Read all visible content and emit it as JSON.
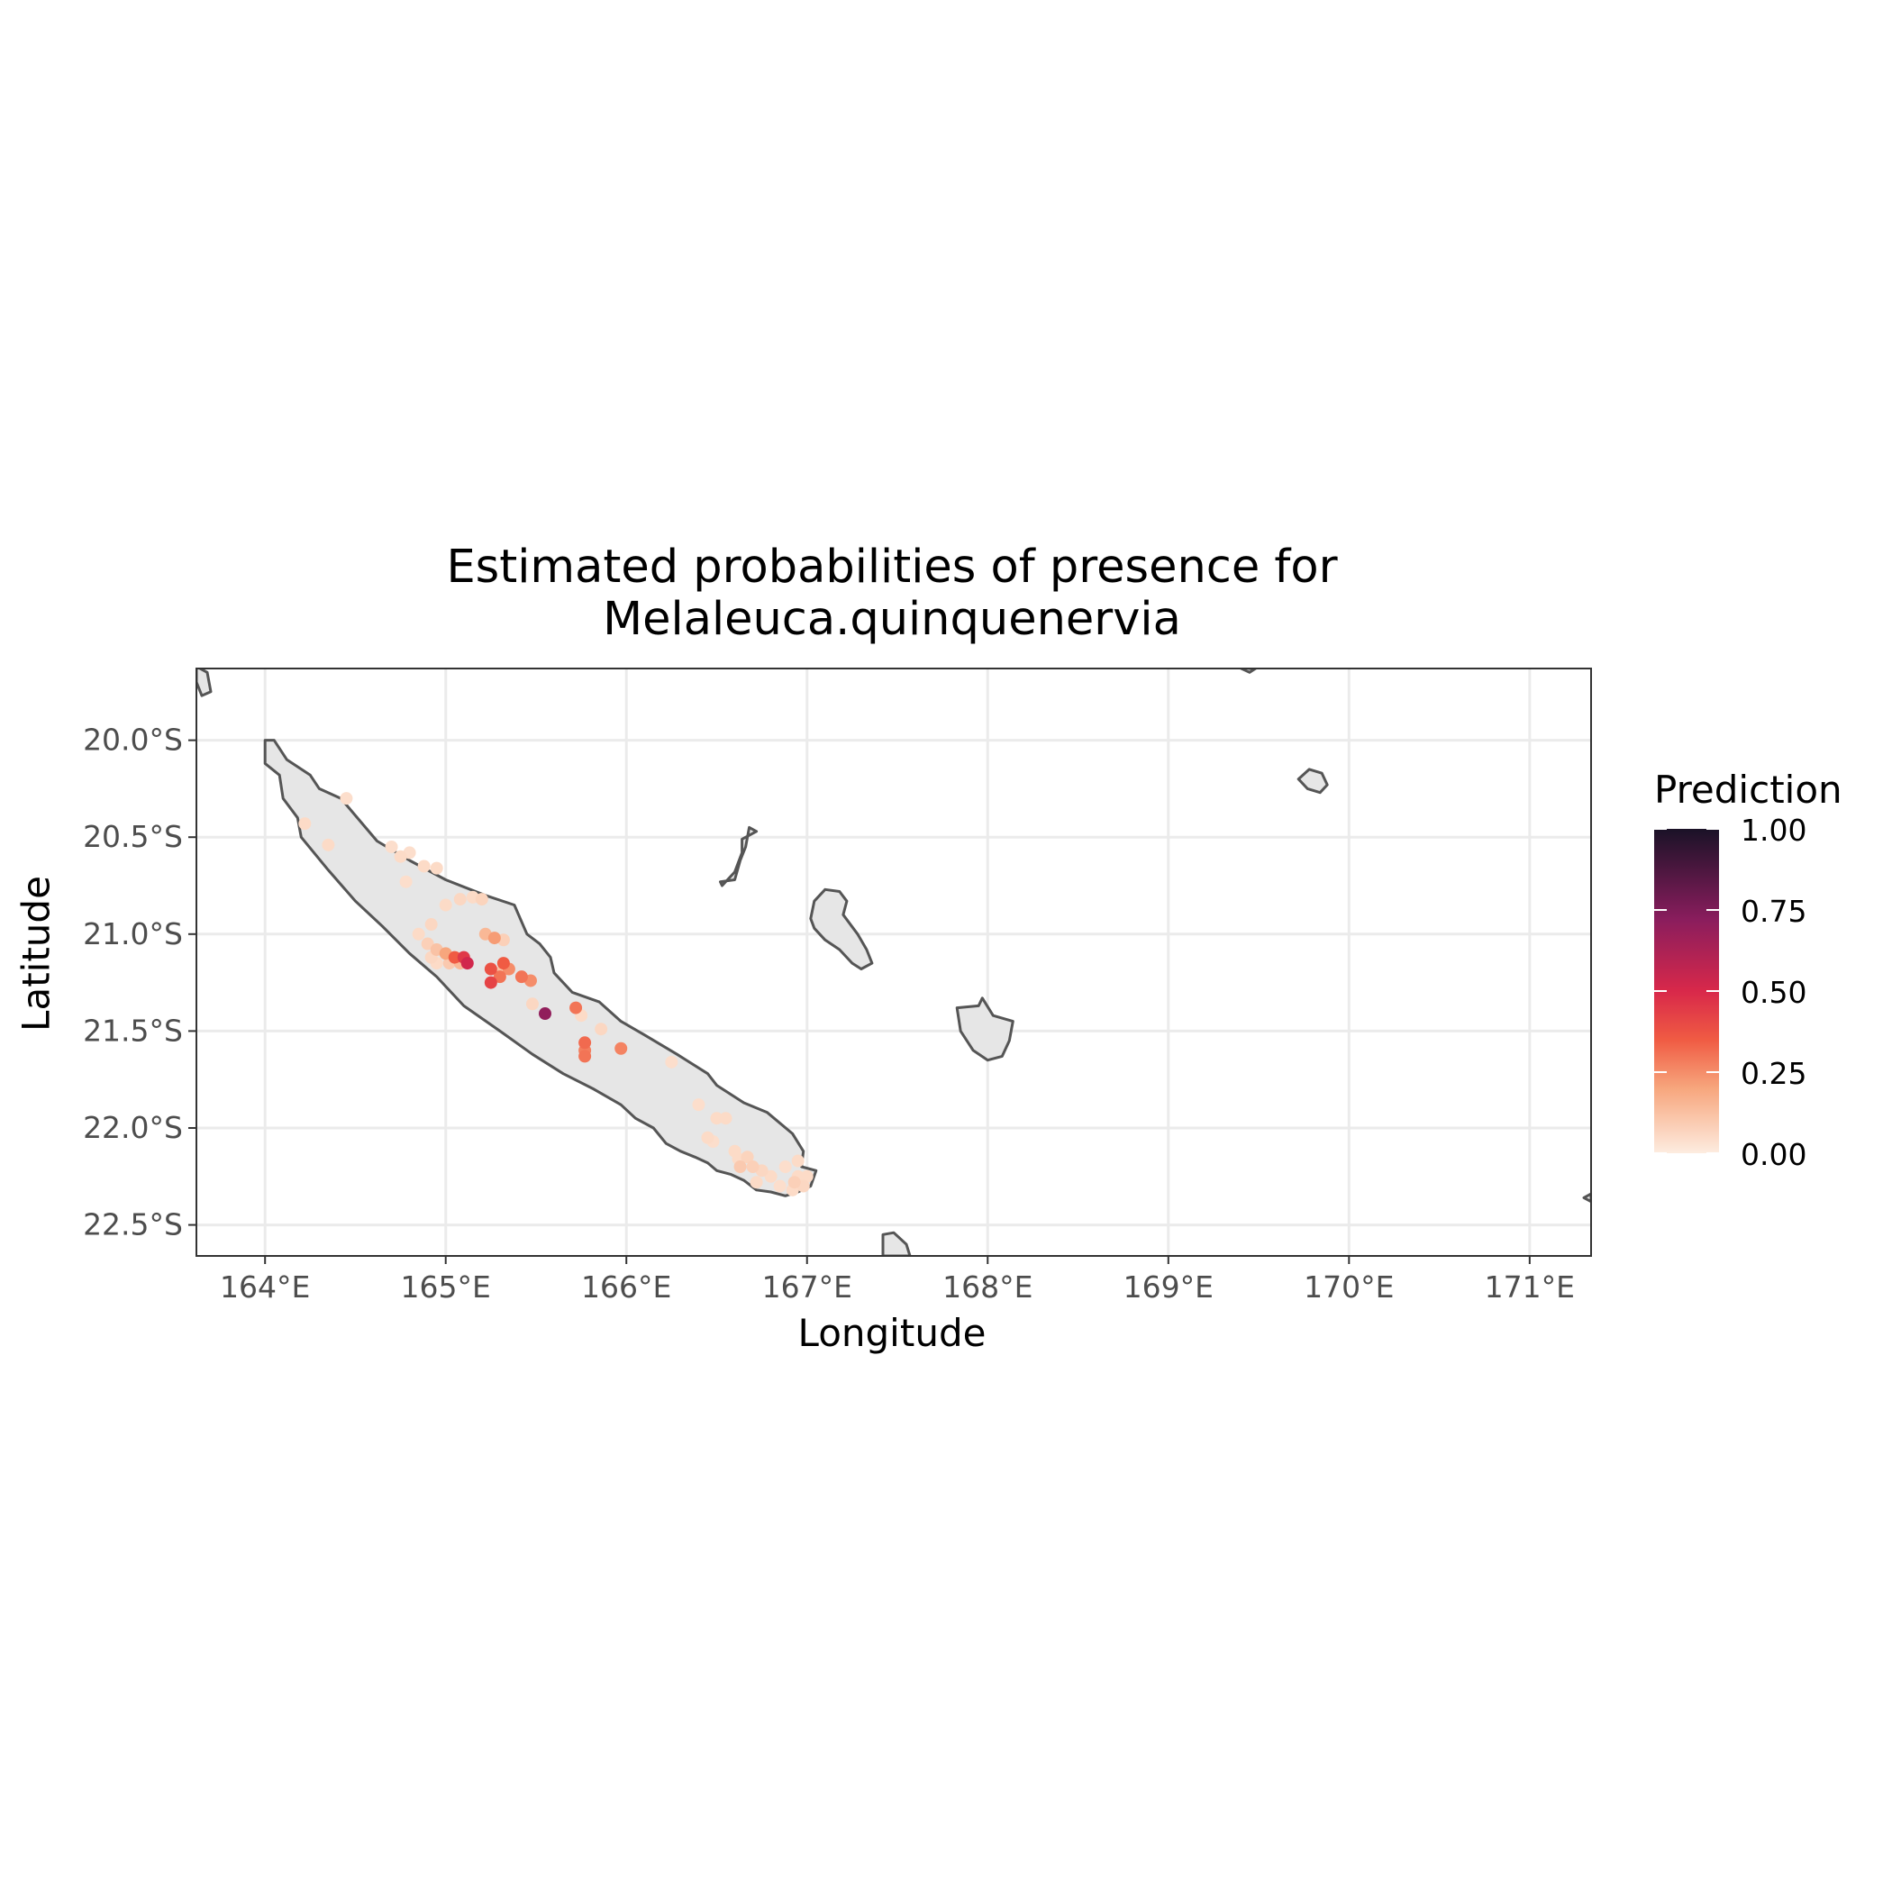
{
  "title": {
    "line1": "Estimated probabilities of presence for",
    "line2": "Melaleuca.quinquenervia"
  },
  "chart_data": {
    "type": "scatter",
    "subtype": "map",
    "xlabel": "Longitude",
    "ylabel": "Latitude",
    "xlim": [
      163.62,
      171.34
    ],
    "ylim": [
      -22.66,
      -19.63
    ],
    "x_ticks": [
      164,
      165,
      166,
      167,
      168,
      169,
      170,
      171
    ],
    "x_tick_labels": [
      "164°E",
      "165°E",
      "166°E",
      "167°E",
      "168°E",
      "169°E",
      "170°E",
      "171°E"
    ],
    "y_ticks": [
      -20.0,
      -20.5,
      -21.0,
      -21.5,
      -22.0,
      -22.5
    ],
    "y_tick_labels": [
      "20.0°S",
      "20.5°S",
      "21.0°S",
      "21.5°S",
      "22.0°S",
      "22.5°S"
    ],
    "grid": true,
    "legend_position": "right",
    "colors": {
      "land_fill": "#e6e6e6",
      "coast": "#555555",
      "grid": "#ebebeb",
      "panel_border": "#333333",
      "scale_low": "#fdece0",
      "scale_mid_low": "#f7a67d",
      "scale_mid": "#f05b43",
      "scale_mid_high": "#d8284a",
      "scale_high_mid": "#8a1d5d",
      "scale_high": "#1a1227"
    },
    "legend": {
      "title": "Prediction",
      "min": 0,
      "max": 1,
      "breaks": [
        1.0,
        0.75,
        0.5,
        0.25,
        0.0
      ],
      "break_labels": [
        "1.00",
        "0.75",
        "0.50",
        "0.25",
        "0.00"
      ]
    },
    "land": [
      {
        "name": "Grande Terre",
        "coords": [
          [
            164.05,
            -20.0
          ],
          [
            164.12,
            -20.1
          ],
          [
            164.25,
            -20.18
          ],
          [
            164.3,
            -20.25
          ],
          [
            164.42,
            -20.3
          ],
          [
            164.62,
            -20.52
          ],
          [
            164.8,
            -20.62
          ],
          [
            165.0,
            -20.72
          ],
          [
            165.22,
            -20.8
          ],
          [
            165.38,
            -20.85
          ],
          [
            165.45,
            -21.0
          ],
          [
            165.52,
            -21.05
          ],
          [
            165.58,
            -21.12
          ],
          [
            165.6,
            -21.2
          ],
          [
            165.7,
            -21.3
          ],
          [
            165.85,
            -21.35
          ],
          [
            165.97,
            -21.45
          ],
          [
            166.1,
            -21.52
          ],
          [
            166.28,
            -21.62
          ],
          [
            166.45,
            -21.72
          ],
          [
            166.5,
            -21.78
          ],
          [
            166.65,
            -21.87
          ],
          [
            166.78,
            -21.92
          ],
          [
            166.92,
            -22.03
          ],
          [
            166.98,
            -22.12
          ],
          [
            166.97,
            -22.2
          ],
          [
            167.05,
            -22.22
          ],
          [
            167.02,
            -22.3
          ],
          [
            166.95,
            -22.33
          ],
          [
            166.88,
            -22.35
          ],
          [
            166.8,
            -22.33
          ],
          [
            166.72,
            -22.32
          ],
          [
            166.65,
            -22.27
          ],
          [
            166.58,
            -22.24
          ],
          [
            166.5,
            -22.22
          ],
          [
            166.45,
            -22.18
          ],
          [
            166.38,
            -22.15
          ],
          [
            166.3,
            -22.12
          ],
          [
            166.22,
            -22.08
          ],
          [
            166.15,
            -22.0
          ],
          [
            166.05,
            -21.95
          ],
          [
            165.97,
            -21.88
          ],
          [
            165.82,
            -21.8
          ],
          [
            165.65,
            -21.72
          ],
          [
            165.48,
            -21.62
          ],
          [
            165.3,
            -21.5
          ],
          [
            165.1,
            -21.37
          ],
          [
            164.95,
            -21.22
          ],
          [
            164.8,
            -21.1
          ],
          [
            164.65,
            -20.96
          ],
          [
            164.5,
            -20.83
          ],
          [
            164.35,
            -20.67
          ],
          [
            164.2,
            -20.5
          ],
          [
            164.18,
            -20.4
          ],
          [
            164.1,
            -20.3
          ],
          [
            164.08,
            -20.18
          ],
          [
            164.0,
            -20.12
          ],
          [
            164.0,
            -20.0
          ]
        ]
      },
      {
        "name": "Ouvea",
        "coords": [
          [
            166.52,
            -20.73
          ],
          [
            166.6,
            -20.72
          ],
          [
            166.63,
            -20.62
          ],
          [
            166.66,
            -20.55
          ],
          [
            166.68,
            -20.45
          ],
          [
            166.72,
            -20.47
          ],
          [
            166.64,
            -20.51
          ],
          [
            166.64,
            -20.58
          ],
          [
            166.6,
            -20.68
          ],
          [
            166.53,
            -20.75
          ]
        ]
      },
      {
        "name": "Lifou",
        "coords": [
          [
            167.02,
            -20.92
          ],
          [
            167.04,
            -20.83
          ],
          [
            167.1,
            -20.77
          ],
          [
            167.18,
            -20.78
          ],
          [
            167.22,
            -20.83
          ],
          [
            167.2,
            -20.9
          ],
          [
            167.28,
            -21.0
          ],
          [
            167.33,
            -21.08
          ],
          [
            167.36,
            -21.15
          ],
          [
            167.3,
            -21.18
          ],
          [
            167.25,
            -21.15
          ],
          [
            167.18,
            -21.08
          ],
          [
            167.1,
            -21.03
          ],
          [
            167.04,
            -20.97
          ]
        ]
      },
      {
        "name": "Mare",
        "coords": [
          [
            167.83,
            -21.38
          ],
          [
            167.95,
            -21.37
          ],
          [
            167.97,
            -21.33
          ],
          [
            168.03,
            -21.42
          ],
          [
            168.14,
            -21.45
          ],
          [
            168.12,
            -21.55
          ],
          [
            168.08,
            -21.63
          ],
          [
            168.0,
            -21.65
          ],
          [
            167.92,
            -21.6
          ],
          [
            167.85,
            -21.5
          ]
        ]
      },
      {
        "name": "Isle of Pines",
        "coords": [
          [
            167.42,
            -22.55
          ],
          [
            167.48,
            -22.54
          ],
          [
            167.55,
            -22.6
          ],
          [
            167.57,
            -22.66
          ],
          [
            167.42,
            -22.66
          ]
        ]
      },
      {
        "name": "Walpole",
        "coords": [
          [
            169.72,
            -20.2
          ],
          [
            169.78,
            -20.15
          ],
          [
            169.85,
            -20.17
          ],
          [
            169.88,
            -20.23
          ],
          [
            169.84,
            -20.27
          ],
          [
            169.77,
            -20.25
          ]
        ]
      },
      {
        "name": "Belep",
        "coords": [
          [
            163.62,
            -19.62
          ],
          [
            163.68,
            -19.65
          ],
          [
            163.7,
            -19.75
          ],
          [
            163.65,
            -19.77
          ],
          [
            163.62,
            -19.7
          ]
        ]
      },
      {
        "name": "Surprise",
        "coords": [
          [
            169.38,
            -19.62
          ],
          [
            169.45,
            -19.63
          ],
          [
            169.5,
            -19.62
          ],
          [
            169.45,
            -19.65
          ]
        ]
      },
      {
        "name": "Hunter",
        "coords": [
          [
            171.3,
            -22.36
          ],
          [
            171.34,
            -22.34
          ],
          [
            171.34,
            -22.38
          ]
        ]
      }
    ],
    "points": [
      {
        "x": 164.22,
        "y": -20.43,
        "v": 0.05
      },
      {
        "x": 164.45,
        "y": -20.3,
        "v": 0.04
      },
      {
        "x": 164.35,
        "y": -20.54,
        "v": 0.05
      },
      {
        "x": 164.7,
        "y": -20.55,
        "v": 0.04
      },
      {
        "x": 164.75,
        "y": -20.6,
        "v": 0.05
      },
      {
        "x": 164.8,
        "y": -20.58,
        "v": 0.04
      },
      {
        "x": 164.88,
        "y": -20.65,
        "v": 0.05
      },
      {
        "x": 164.95,
        "y": -20.66,
        "v": 0.05
      },
      {
        "x": 164.78,
        "y": -20.73,
        "v": 0.04
      },
      {
        "x": 165.0,
        "y": -20.85,
        "v": 0.05
      },
      {
        "x": 165.08,
        "y": -20.82,
        "v": 0.06
      },
      {
        "x": 165.15,
        "y": -20.81,
        "v": 0.05
      },
      {
        "x": 165.2,
        "y": -20.82,
        "v": 0.07
      },
      {
        "x": 164.92,
        "y": -20.95,
        "v": 0.06
      },
      {
        "x": 164.85,
        "y": -21.0,
        "v": 0.05
      },
      {
        "x": 164.9,
        "y": -21.05,
        "v": 0.08
      },
      {
        "x": 164.95,
        "y": -21.08,
        "v": 0.12
      },
      {
        "x": 165.0,
        "y": -21.1,
        "v": 0.2
      },
      {
        "x": 164.92,
        "y": -21.12,
        "v": 0.06
      },
      {
        "x": 164.95,
        "y": -21.15,
        "v": 0.05
      },
      {
        "x": 165.02,
        "y": -21.15,
        "v": 0.1
      },
      {
        "x": 165.05,
        "y": -21.12,
        "v": 0.35
      },
      {
        "x": 165.1,
        "y": -21.12,
        "v": 0.45
      },
      {
        "x": 165.12,
        "y": -21.15,
        "v": 0.52
      },
      {
        "x": 165.08,
        "y": -21.15,
        "v": 0.15
      },
      {
        "x": 165.22,
        "y": -21.0,
        "v": 0.15
      },
      {
        "x": 165.27,
        "y": -21.02,
        "v": 0.22
      },
      {
        "x": 165.32,
        "y": -21.03,
        "v": 0.08
      },
      {
        "x": 165.25,
        "y": -21.18,
        "v": 0.38
      },
      {
        "x": 165.3,
        "y": -21.22,
        "v": 0.3
      },
      {
        "x": 165.25,
        "y": -21.25,
        "v": 0.42
      },
      {
        "x": 165.32,
        "y": -21.15,
        "v": 0.35
      },
      {
        "x": 165.35,
        "y": -21.18,
        "v": 0.25
      },
      {
        "x": 165.3,
        "y": -21.2,
        "v": 0.12
      },
      {
        "x": 165.42,
        "y": -21.22,
        "v": 0.3
      },
      {
        "x": 165.47,
        "y": -21.24,
        "v": 0.25
      },
      {
        "x": 165.48,
        "y": -21.36,
        "v": 0.06
      },
      {
        "x": 165.55,
        "y": -21.41,
        "v": 0.7
      },
      {
        "x": 165.72,
        "y": -21.38,
        "v": 0.3
      },
      {
        "x": 165.75,
        "y": -21.42,
        "v": 0.05
      },
      {
        "x": 165.86,
        "y": -21.49,
        "v": 0.06
      },
      {
        "x": 165.77,
        "y": -21.56,
        "v": 0.32
      },
      {
        "x": 165.77,
        "y": -21.6,
        "v": 0.28
      },
      {
        "x": 165.77,
        "y": -21.63,
        "v": 0.3
      },
      {
        "x": 165.97,
        "y": -21.59,
        "v": 0.27
      },
      {
        "x": 166.25,
        "y": -21.66,
        "v": 0.04
      },
      {
        "x": 166.4,
        "y": -21.88,
        "v": 0.04
      },
      {
        "x": 166.5,
        "y": -21.95,
        "v": 0.05
      },
      {
        "x": 166.55,
        "y": -21.95,
        "v": 0.05
      },
      {
        "x": 166.45,
        "y": -22.05,
        "v": 0.05
      },
      {
        "x": 166.48,
        "y": -22.07,
        "v": 0.04
      },
      {
        "x": 166.6,
        "y": -22.12,
        "v": 0.05
      },
      {
        "x": 166.62,
        "y": -22.16,
        "v": 0.05
      },
      {
        "x": 166.67,
        "y": -22.15,
        "v": 0.07
      },
      {
        "x": 166.63,
        "y": -22.2,
        "v": 0.1
      },
      {
        "x": 166.7,
        "y": -22.2,
        "v": 0.08
      },
      {
        "x": 166.75,
        "y": -22.22,
        "v": 0.06
      },
      {
        "x": 166.8,
        "y": -22.25,
        "v": 0.05
      },
      {
        "x": 166.88,
        "y": -22.2,
        "v": 0.04
      },
      {
        "x": 166.95,
        "y": -22.17,
        "v": 0.05
      },
      {
        "x": 166.95,
        "y": -22.25,
        "v": 0.05
      },
      {
        "x": 166.93,
        "y": -22.28,
        "v": 0.08
      },
      {
        "x": 166.98,
        "y": -22.3,
        "v": 0.06
      },
      {
        "x": 167.0,
        "y": -22.25,
        "v": 0.05
      },
      {
        "x": 166.72,
        "y": -22.28,
        "v": 0.05
      },
      {
        "x": 166.85,
        "y": -22.3,
        "v": 0.04
      },
      {
        "x": 166.92,
        "y": -22.32,
        "v": 0.05
      }
    ]
  }
}
